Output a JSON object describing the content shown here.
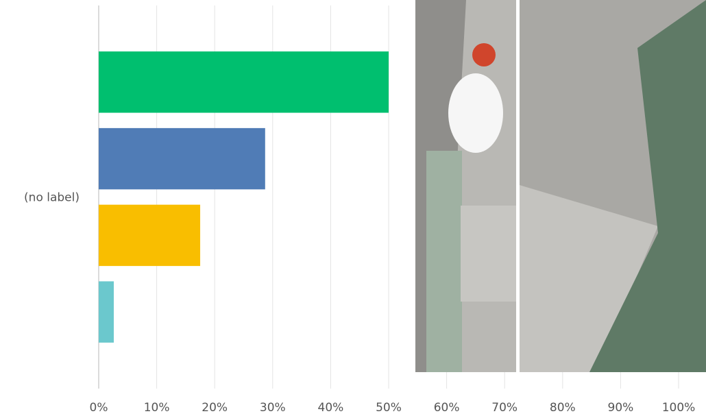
{
  "chart_data": {
    "type": "hbar",
    "categories": [
      "(no label)"
    ],
    "series": [
      {
        "color": "#00bf6f",
        "values": [
          50
        ]
      },
      {
        "color": "#507cb6",
        "values": [
          28.7
        ]
      },
      {
        "color": "#f9be00",
        "values": [
          17.5
        ]
      },
      {
        "color": "#6bc8cd",
        "values": [
          2.6
        ]
      }
    ],
    "xlim": [
      0,
      100
    ],
    "xticks": [
      {
        "value": 0,
        "label": "0%"
      },
      {
        "value": 10,
        "label": "10%"
      },
      {
        "value": 20,
        "label": "20%"
      },
      {
        "value": 30,
        "label": "30%"
      },
      {
        "value": 40,
        "label": "40%"
      },
      {
        "value": 50,
        "label": "50%"
      },
      {
        "value": 60,
        "label": "60%"
      },
      {
        "value": 70,
        "label": "70%"
      },
      {
        "value": 80,
        "label": "80%"
      },
      {
        "value": 90,
        "label": "90%"
      },
      {
        "value": 100,
        "label": "100%"
      }
    ],
    "grid": true
  }
}
